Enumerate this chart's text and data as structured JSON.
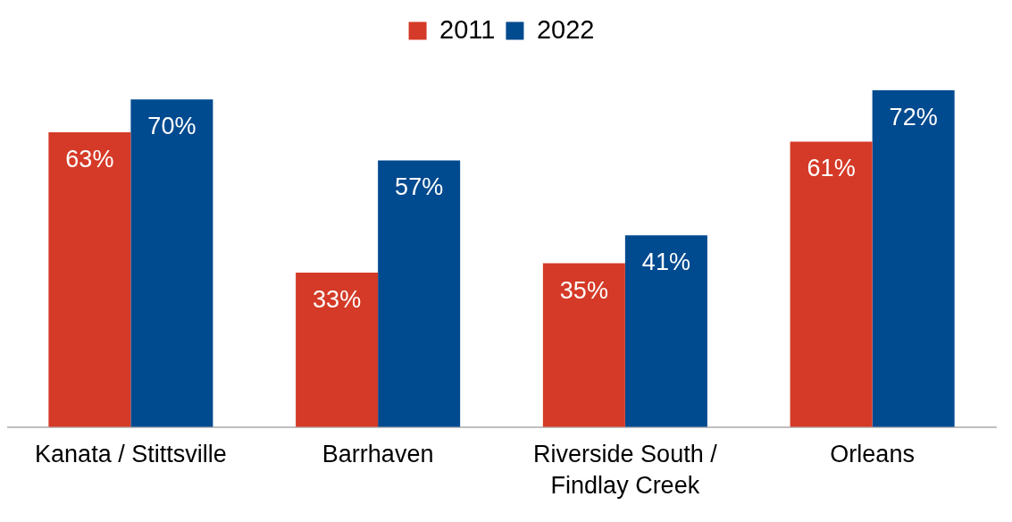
{
  "chart_data": {
    "type": "bar",
    "categories": [
      "Kanata / Stittsville",
      "Barrhaven",
      "Riverside South / Findlay Creek",
      "Orleans"
    ],
    "series": [
      {
        "name": "2011",
        "color": "#d43a27",
        "values": [
          63,
          33,
          35,
          61
        ],
        "value_labels": [
          "63%",
          "33%",
          "35%",
          "61%"
        ]
      },
      {
        "name": "2022",
        "color": "#004a8f",
        "values": [
          70,
          57,
          41,
          72
        ],
        "value_labels": [
          "70%",
          "57%",
          "41%",
          "72%"
        ]
      }
    ],
    "legend": "top",
    "grid": false,
    "tick_labels": "x"
  }
}
